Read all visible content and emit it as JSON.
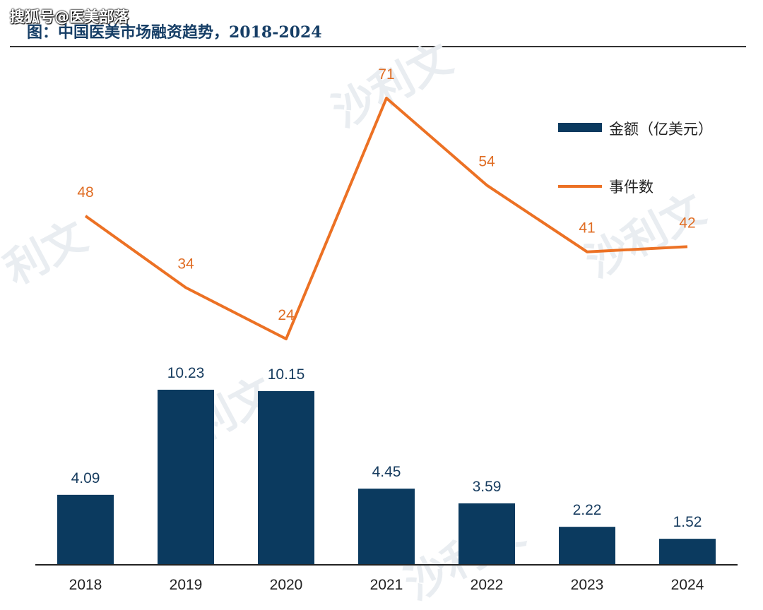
{
  "source_watermark": "搜狐号@医美部落",
  "title": "图：中国医美市场融资趋势，2018-2024",
  "colors": {
    "bar": "#0b3a5f",
    "line": "#ec7124",
    "bar_label": "#173c5f",
    "line_label": "#e06d24",
    "axis": "#222222"
  },
  "chart_data": {
    "type": "bar",
    "categories": [
      "2018",
      "2019",
      "2020",
      "2021",
      "2022",
      "2023",
      "2024"
    ],
    "series": [
      {
        "name": "金额（亿美元）",
        "type": "bar",
        "values": [
          4.09,
          10.23,
          10.15,
          4.45,
          3.59,
          2.22,
          1.52
        ]
      },
      {
        "name": "事件数",
        "type": "line",
        "values": [
          48,
          34,
          24,
          71,
          54,
          41,
          42
        ]
      }
    ],
    "bar_labels": [
      "4.09",
      "10.23",
      "10.15",
      "4.45",
      "3.59",
      "2.22",
      "1.52"
    ],
    "line_labels": [
      "48",
      "34",
      "24",
      "71",
      "54",
      "41",
      "42"
    ],
    "legend_position": "top-right",
    "grid": false
  }
}
